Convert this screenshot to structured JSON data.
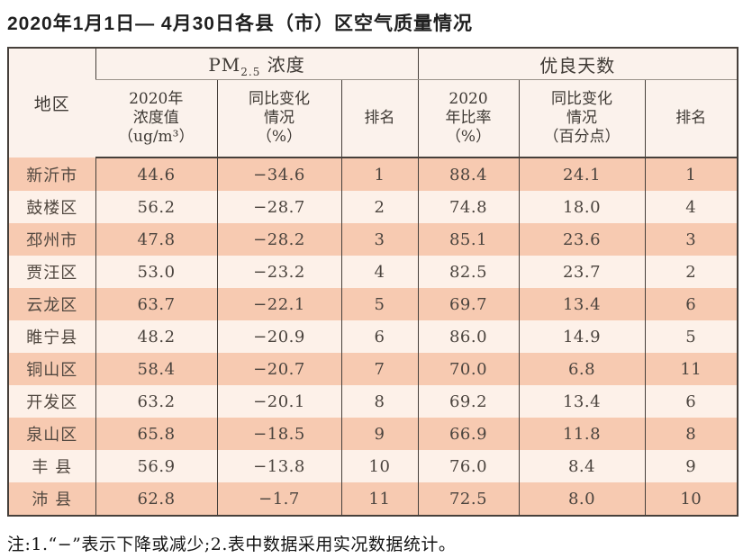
{
  "title": "2020年1月1日— 4月30日各县（市）区空气质量情况",
  "note": "注:1.“−”表示下降或减少;2.表中数据采用实况数据统计。",
  "colors": {
    "row_odd": "#f7cab1",
    "row_even": "#fdf1e9",
    "header_bg": "#fbf2ec",
    "table_border": "#46403b"
  },
  "table": {
    "region_header": "地区",
    "pm_group": {
      "prefix": "PM",
      "sub": "2.5",
      "suffix": " 浓度"
    },
    "good_group": "优良天数",
    "sub_headers": [
      "2020年\n浓度值\n（ug/m³）",
      "同比变化\n情况\n（%）",
      "排名",
      "2020\n年比率\n（%）",
      "同比变化\n情况\n（百分点）",
      "排名"
    ]
  },
  "chart_data": {
    "type": "table",
    "title": "2020年1月1日— 4月30日各县（市）区空气质量情况",
    "columns": [
      "地区",
      "PM2.5浓度 2020年浓度值（ug/m³）",
      "PM2.5浓度 同比变化情况（%）",
      "PM2.5浓度 排名",
      "优良天数 2020年比率（%）",
      "优良天数 同比变化情况（百分点）",
      "优良天数 排名"
    ],
    "rows": [
      {
        "region": "新沂市",
        "pm_value": "44.6",
        "pm_change": "−34.6",
        "pm_rank": "1",
        "good_rate": "88.4",
        "good_change": "24.1",
        "good_rank": "1"
      },
      {
        "region": "鼓楼区",
        "pm_value": "56.2",
        "pm_change": "−28.7",
        "pm_rank": "2",
        "good_rate": "74.8",
        "good_change": "18.0",
        "good_rank": "4"
      },
      {
        "region": "邳州市",
        "pm_value": "47.8",
        "pm_change": "−28.2",
        "pm_rank": "3",
        "good_rate": "85.1",
        "good_change": "23.6",
        "good_rank": "3"
      },
      {
        "region": "贾汪区",
        "pm_value": "53.0",
        "pm_change": "−23.2",
        "pm_rank": "4",
        "good_rate": "82.5",
        "good_change": "23.7",
        "good_rank": "2"
      },
      {
        "region": "云龙区",
        "pm_value": "63.7",
        "pm_change": "−22.1",
        "pm_rank": "5",
        "good_rate": "69.7",
        "good_change": "13.4",
        "good_rank": "6"
      },
      {
        "region": "睢宁县",
        "pm_value": "48.2",
        "pm_change": "−20.9",
        "pm_rank": "6",
        "good_rate": "86.0",
        "good_change": "14.9",
        "good_rank": "5"
      },
      {
        "region": "铜山区",
        "pm_value": "58.4",
        "pm_change": "−20.7",
        "pm_rank": "7",
        "good_rate": "70.0",
        "good_change": "6.8",
        "good_rank": "11"
      },
      {
        "region": "开发区",
        "pm_value": "63.2",
        "pm_change": "−20.1",
        "pm_rank": "8",
        "good_rate": "69.2",
        "good_change": "13.4",
        "good_rank": "6"
      },
      {
        "region": "泉山区",
        "pm_value": "65.8",
        "pm_change": "−18.5",
        "pm_rank": "9",
        "good_rate": "66.9",
        "good_change": "11.8",
        "good_rank": "8"
      },
      {
        "region": "丰 县",
        "pm_value": "56.9",
        "pm_change": "−13.8",
        "pm_rank": "10",
        "good_rate": "76.0",
        "good_change": "8.4",
        "good_rank": "9"
      },
      {
        "region": "沛 县",
        "pm_value": "62.8",
        "pm_change": "−1.7",
        "pm_rank": "11",
        "good_rate": "72.5",
        "good_change": "8.0",
        "good_rank": "10"
      }
    ]
  }
}
